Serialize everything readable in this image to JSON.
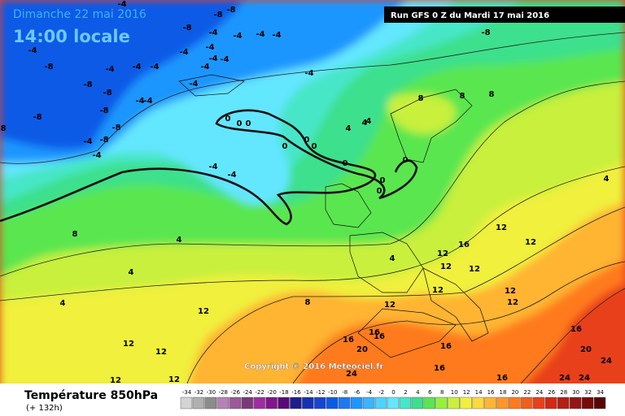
{
  "header": {
    "date": "Dimanche 22 mai 2016",
    "time": "14:00 locale",
    "run": "Run GFS 0 Z du Mardi 17 mai 2016"
  },
  "footer": {
    "title": "Température 850hPa",
    "lead": "(+ 132h)",
    "copyright": "Copyright © 2016 Meteociel.fr"
  },
  "scale": {
    "values": [
      -34,
      -32,
      -30,
      -28,
      -26,
      -24,
      -22,
      -20,
      -18,
      -16,
      -14,
      -12,
      -10,
      -8,
      -6,
      -4,
      -2,
      0,
      2,
      4,
      6,
      8,
      10,
      12,
      14,
      16,
      18,
      20,
      22,
      24,
      26,
      28,
      30,
      32,
      34
    ],
    "colors": [
      "#d4d4d4",
      "#b0b0b0",
      "#8c8c8c",
      "#b482b4",
      "#9a5a9a",
      "#7a3a7a",
      "#a02ca0",
      "#82148c",
      "#5a0a78",
      "#1e1e8c",
      "#1432b4",
      "#1446d2",
      "#0a5ae6",
      "#1e78f0",
      "#1e96ff",
      "#3cb4ff",
      "#50d2ff",
      "#64e6ff",
      "#46e6c8",
      "#3ce08c",
      "#5ae650",
      "#96f03c",
      "#c8f03c",
      "#f0f03c",
      "#ffd83c",
      "#ffb432",
      "#ff9628",
      "#ff7a1e",
      "#f0601a",
      "#e8401a",
      "#d22814",
      "#b41e14",
      "#961414",
      "#780a0a",
      "#5a0505"
    ]
  },
  "contour_labels": [
    -8,
    -8,
    -4,
    -8,
    -4,
    -4,
    -4,
    -4,
    -8,
    -4,
    -4,
    -4,
    -4,
    -4,
    -4,
    -4,
    -4,
    -4,
    -4,
    -8,
    -8,
    -8,
    -4,
    -4,
    -8,
    -8,
    -8,
    -8,
    -4,
    -8,
    -4,
    -4,
    8,
    8,
    8,
    4,
    4,
    4,
    0,
    0,
    0,
    0,
    0,
    0,
    0,
    0,
    0,
    0,
    -4,
    -4,
    4,
    8,
    4,
    12,
    16,
    12,
    12,
    12,
    12,
    12,
    12,
    12,
    4,
    4,
    8,
    4,
    12,
    12,
    12,
    12,
    16,
    16,
    16,
    20,
    16,
    16,
    20,
    24,
    16,
    24,
    24,
    12,
    12,
    16,
    24
  ]
}
